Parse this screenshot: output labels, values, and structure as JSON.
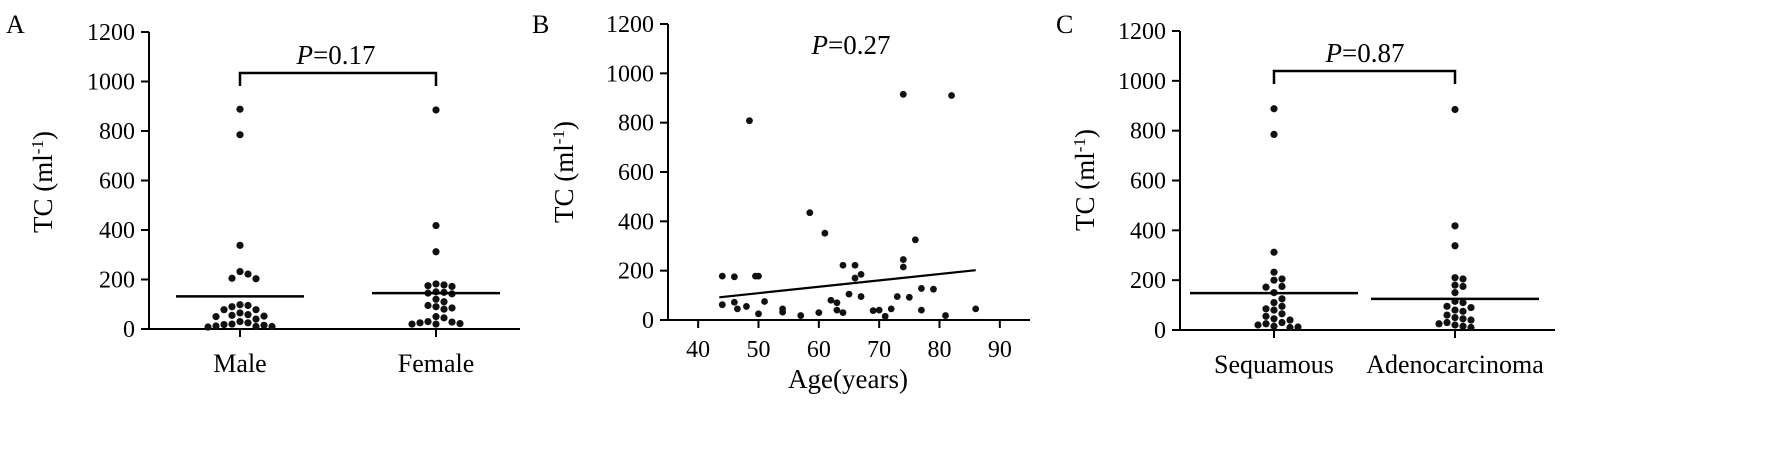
{
  "chart_data": [
    {
      "panel": "A",
      "type": "scatter",
      "ylabel_main": "TC (ml",
      "ylabel_sup": "-1",
      "ylabel_end": ")",
      "ylim": [
        0,
        1200
      ],
      "yticks": [
        "0",
        "200",
        "400",
        "600",
        "800",
        "1000",
        "1200"
      ],
      "categories": [
        "Male",
        "Female"
      ],
      "annotation_p": "P",
      "annotation_value": "=0.17",
      "grid": false,
      "series": [
        {
          "category": "Male",
          "mean": 132,
          "values": [
            888,
            785,
            338,
            232,
            222,
            205,
            203,
            98,
            95,
            90,
            78,
            78,
            65,
            58,
            55,
            52,
            50,
            40,
            30,
            25,
            20,
            18,
            15,
            12,
            10,
            10,
            8
          ]
        },
        {
          "category": "Female",
          "mean": 145,
          "values": [
            885,
            418,
            312,
            182,
            178,
            175,
            172,
            150,
            148,
            145,
            142,
            120,
            110,
            95,
            90,
            85,
            80,
            50,
            45,
            30,
            28,
            25,
            22,
            20,
            20
          ]
        }
      ]
    },
    {
      "panel": "B",
      "type": "scatter",
      "xlabel": "Age(years)",
      "ylabel_main": "TC (ml",
      "ylabel_sup": "-1",
      "ylabel_end": ")",
      "xlim": [
        35,
        95
      ],
      "ylim": [
        0,
        1200
      ],
      "xticks": [
        "40",
        "50",
        "60",
        "70",
        "80",
        "90"
      ],
      "yticks": [
        "0",
        "200",
        "400",
        "600",
        "800",
        "1000",
        "1200"
      ],
      "annotation_p": "P",
      "annotation_value": "=0.27",
      "grid": false,
      "points": [
        {
          "x": 48.5,
          "y": 808
        },
        {
          "x": 74,
          "y": 915
        },
        {
          "x": 82,
          "y": 910
        },
        {
          "x": 58.5,
          "y": 435
        },
        {
          "x": 61,
          "y": 352
        },
        {
          "x": 76,
          "y": 325
        },
        {
          "x": 74,
          "y": 245
        },
        {
          "x": 74,
          "y": 215
        },
        {
          "x": 64,
          "y": 222
        },
        {
          "x": 66,
          "y": 222
        },
        {
          "x": 67,
          "y": 185
        },
        {
          "x": 66,
          "y": 170
        },
        {
          "x": 44,
          "y": 178
        },
        {
          "x": 46,
          "y": 175
        },
        {
          "x": 49.5,
          "y": 178
        },
        {
          "x": 50,
          "y": 178
        },
        {
          "x": 77,
          "y": 128
        },
        {
          "x": 79,
          "y": 125
        },
        {
          "x": 65,
          "y": 105
        },
        {
          "x": 67,
          "y": 95
        },
        {
          "x": 73,
          "y": 95
        },
        {
          "x": 75,
          "y": 92
        },
        {
          "x": 62,
          "y": 80
        },
        {
          "x": 63,
          "y": 70
        },
        {
          "x": 51,
          "y": 75
        },
        {
          "x": 46,
          "y": 72
        },
        {
          "x": 44,
          "y": 62
        },
        {
          "x": 48,
          "y": 55
        },
        {
          "x": 46.5,
          "y": 45
        },
        {
          "x": 54,
          "y": 45
        },
        {
          "x": 63,
          "y": 40
        },
        {
          "x": 70,
          "y": 40
        },
        {
          "x": 69,
          "y": 38
        },
        {
          "x": 72,
          "y": 45
        },
        {
          "x": 77,
          "y": 40
        },
        {
          "x": 86,
          "y": 45
        },
        {
          "x": 54,
          "y": 32
        },
        {
          "x": 50,
          "y": 25
        },
        {
          "x": 60,
          "y": 30
        },
        {
          "x": 64,
          "y": 30
        },
        {
          "x": 57,
          "y": 18
        },
        {
          "x": 81,
          "y": 18
        },
        {
          "x": 71,
          "y": 15
        }
      ],
      "trendline": {
        "x": [
          43.5,
          86
        ],
        "y": [
          92,
          202
        ]
      }
    },
    {
      "panel": "C",
      "type": "scatter",
      "ylabel_main": "TC (ml",
      "ylabel_sup": "-1",
      "ylabel_end": ")",
      "ylim": [
        0,
        1200
      ],
      "yticks": [
        "0",
        "200",
        "400",
        "600",
        "800",
        "1000",
        "1200"
      ],
      "categories": [
        "Sequamous",
        "Adenocarcinoma"
      ],
      "annotation_p": "P",
      "annotation_value": "=0.87",
      "grid": false,
      "series": [
        {
          "category": "Sequamous",
          "mean": 148,
          "values": [
            888,
            785,
            312,
            232,
            205,
            200,
            175,
            172,
            150,
            125,
            110,
            95,
            85,
            80,
            65,
            55,
            45,
            40,
            30,
            25,
            20,
            15,
            12,
            10
          ]
        },
        {
          "category": "Adenocarcinoma",
          "mean": 125,
          "values": [
            885,
            418,
            338,
            210,
            205,
            180,
            175,
            150,
            115,
            110,
            95,
            90,
            80,
            75,
            60,
            50,
            45,
            40,
            30,
            25,
            20,
            15,
            10
          ]
        }
      ]
    }
  ]
}
